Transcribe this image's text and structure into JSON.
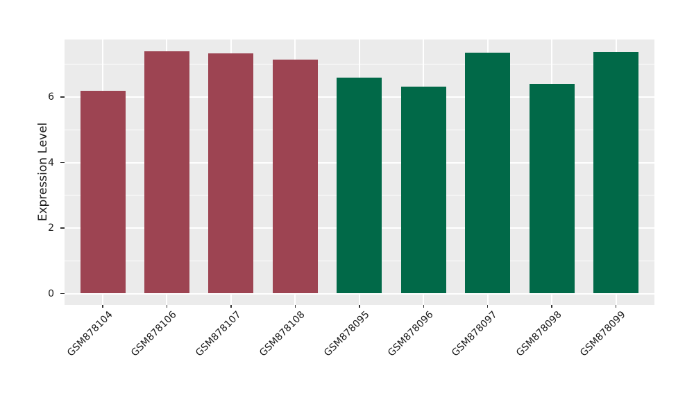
{
  "chart_data": {
    "type": "bar",
    "title": "",
    "xlabel": "",
    "ylabel": "Expression Level",
    "categories": [
      "GSM878104",
      "GSM878106",
      "GSM878107",
      "GSM878108",
      "GSM878095",
      "GSM878096",
      "GSM878097",
      "GSM878098",
      "GSM878099"
    ],
    "values": [
      6.19,
      7.39,
      7.33,
      7.14,
      6.59,
      6.32,
      7.36,
      6.41,
      7.37
    ],
    "bar_colors": [
      "#9D4452",
      "#9D4452",
      "#9D4452",
      "#9D4452",
      "#016948",
      "#016948",
      "#016948",
      "#016948",
      "#016948"
    ],
    "group_colors": {
      "left_group_red": "#9D4452",
      "right_group_green": "#016948"
    },
    "y_tick_labels": [
      "0",
      "2",
      "4",
      "6"
    ],
    "y_major_ticks": [
      0,
      2,
      4,
      6
    ],
    "y_minor_gridlines": [
      1,
      3,
      5,
      7
    ],
    "ylim": [
      -0.37,
      7.75
    ],
    "x_tick_rotation_degrees": 45,
    "legend_position": "none",
    "panel_background": "#EBEBEB",
    "gridline_color": "#FFFFFF",
    "tick_mark_color": "#333333",
    "text_color": "#1A1A1A",
    "figure_background": "#FFFFFF"
  }
}
